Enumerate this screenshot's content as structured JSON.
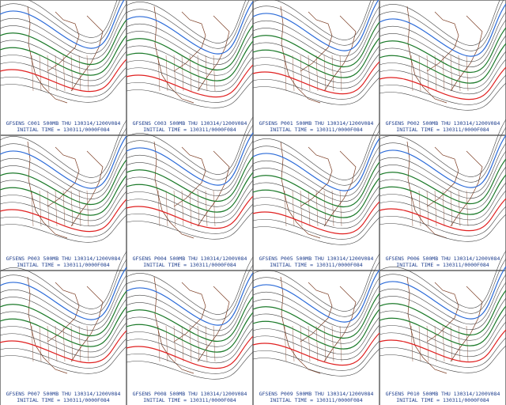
{
  "panels": [
    {
      "title": "GFSENS C001 500MB THU 130314/1200V084",
      "init": "INITIAL TIME = 130311/0000F084"
    },
    {
      "title": "GFSENS C003 500MB THU 130314/1200V084",
      "init": "INITIAL TIME = 130311/0000F084"
    },
    {
      "title": "GFSENS P001 500MB THU 130314/1200V084",
      "init": "INITIAL TIME = 130311/0000F084"
    },
    {
      "title": "GFSENS P002 500MB THU 130314/1200V084",
      "init": "INITIAL TIME = 130311/0000F084"
    },
    {
      "title": "GFSENS P003 500MB THU 130314/1200V084",
      "init": "INITIAL TIME = 130311/0000F084"
    },
    {
      "title": "GFSENS P004 500MB THU 130314/1200V084",
      "init": "INITIAL TIME = 130311/0000F084"
    },
    {
      "title": "GFSENS P005 500MB THU 130314/1200V084",
      "init": "INITIAL TIME = 130311/0000F084"
    },
    {
      "title": "GFSENS P006 500MB THU 130314/1200V084",
      "init": "INITIAL TIME = 130311/0000F084"
    },
    {
      "title": "GFSENS P007 500MB THU 130314/1200V084",
      "init": "INITIAL TIME = 130311/0000F084"
    },
    {
      "title": "GFSENS P008 500MB THU 130314/1200V084",
      "init": "INITIAL TIME = 130311/0000F084"
    },
    {
      "title": "GFSENS P009 500MB THU 130314/1200V084",
      "init": "INITIAL TIME = 130311/0000F084"
    },
    {
      "title": "GFSENS P010 500MB THU 130314/1200V084",
      "init": "INITIAL TIME = 130311/0000F084"
    }
  ]
}
